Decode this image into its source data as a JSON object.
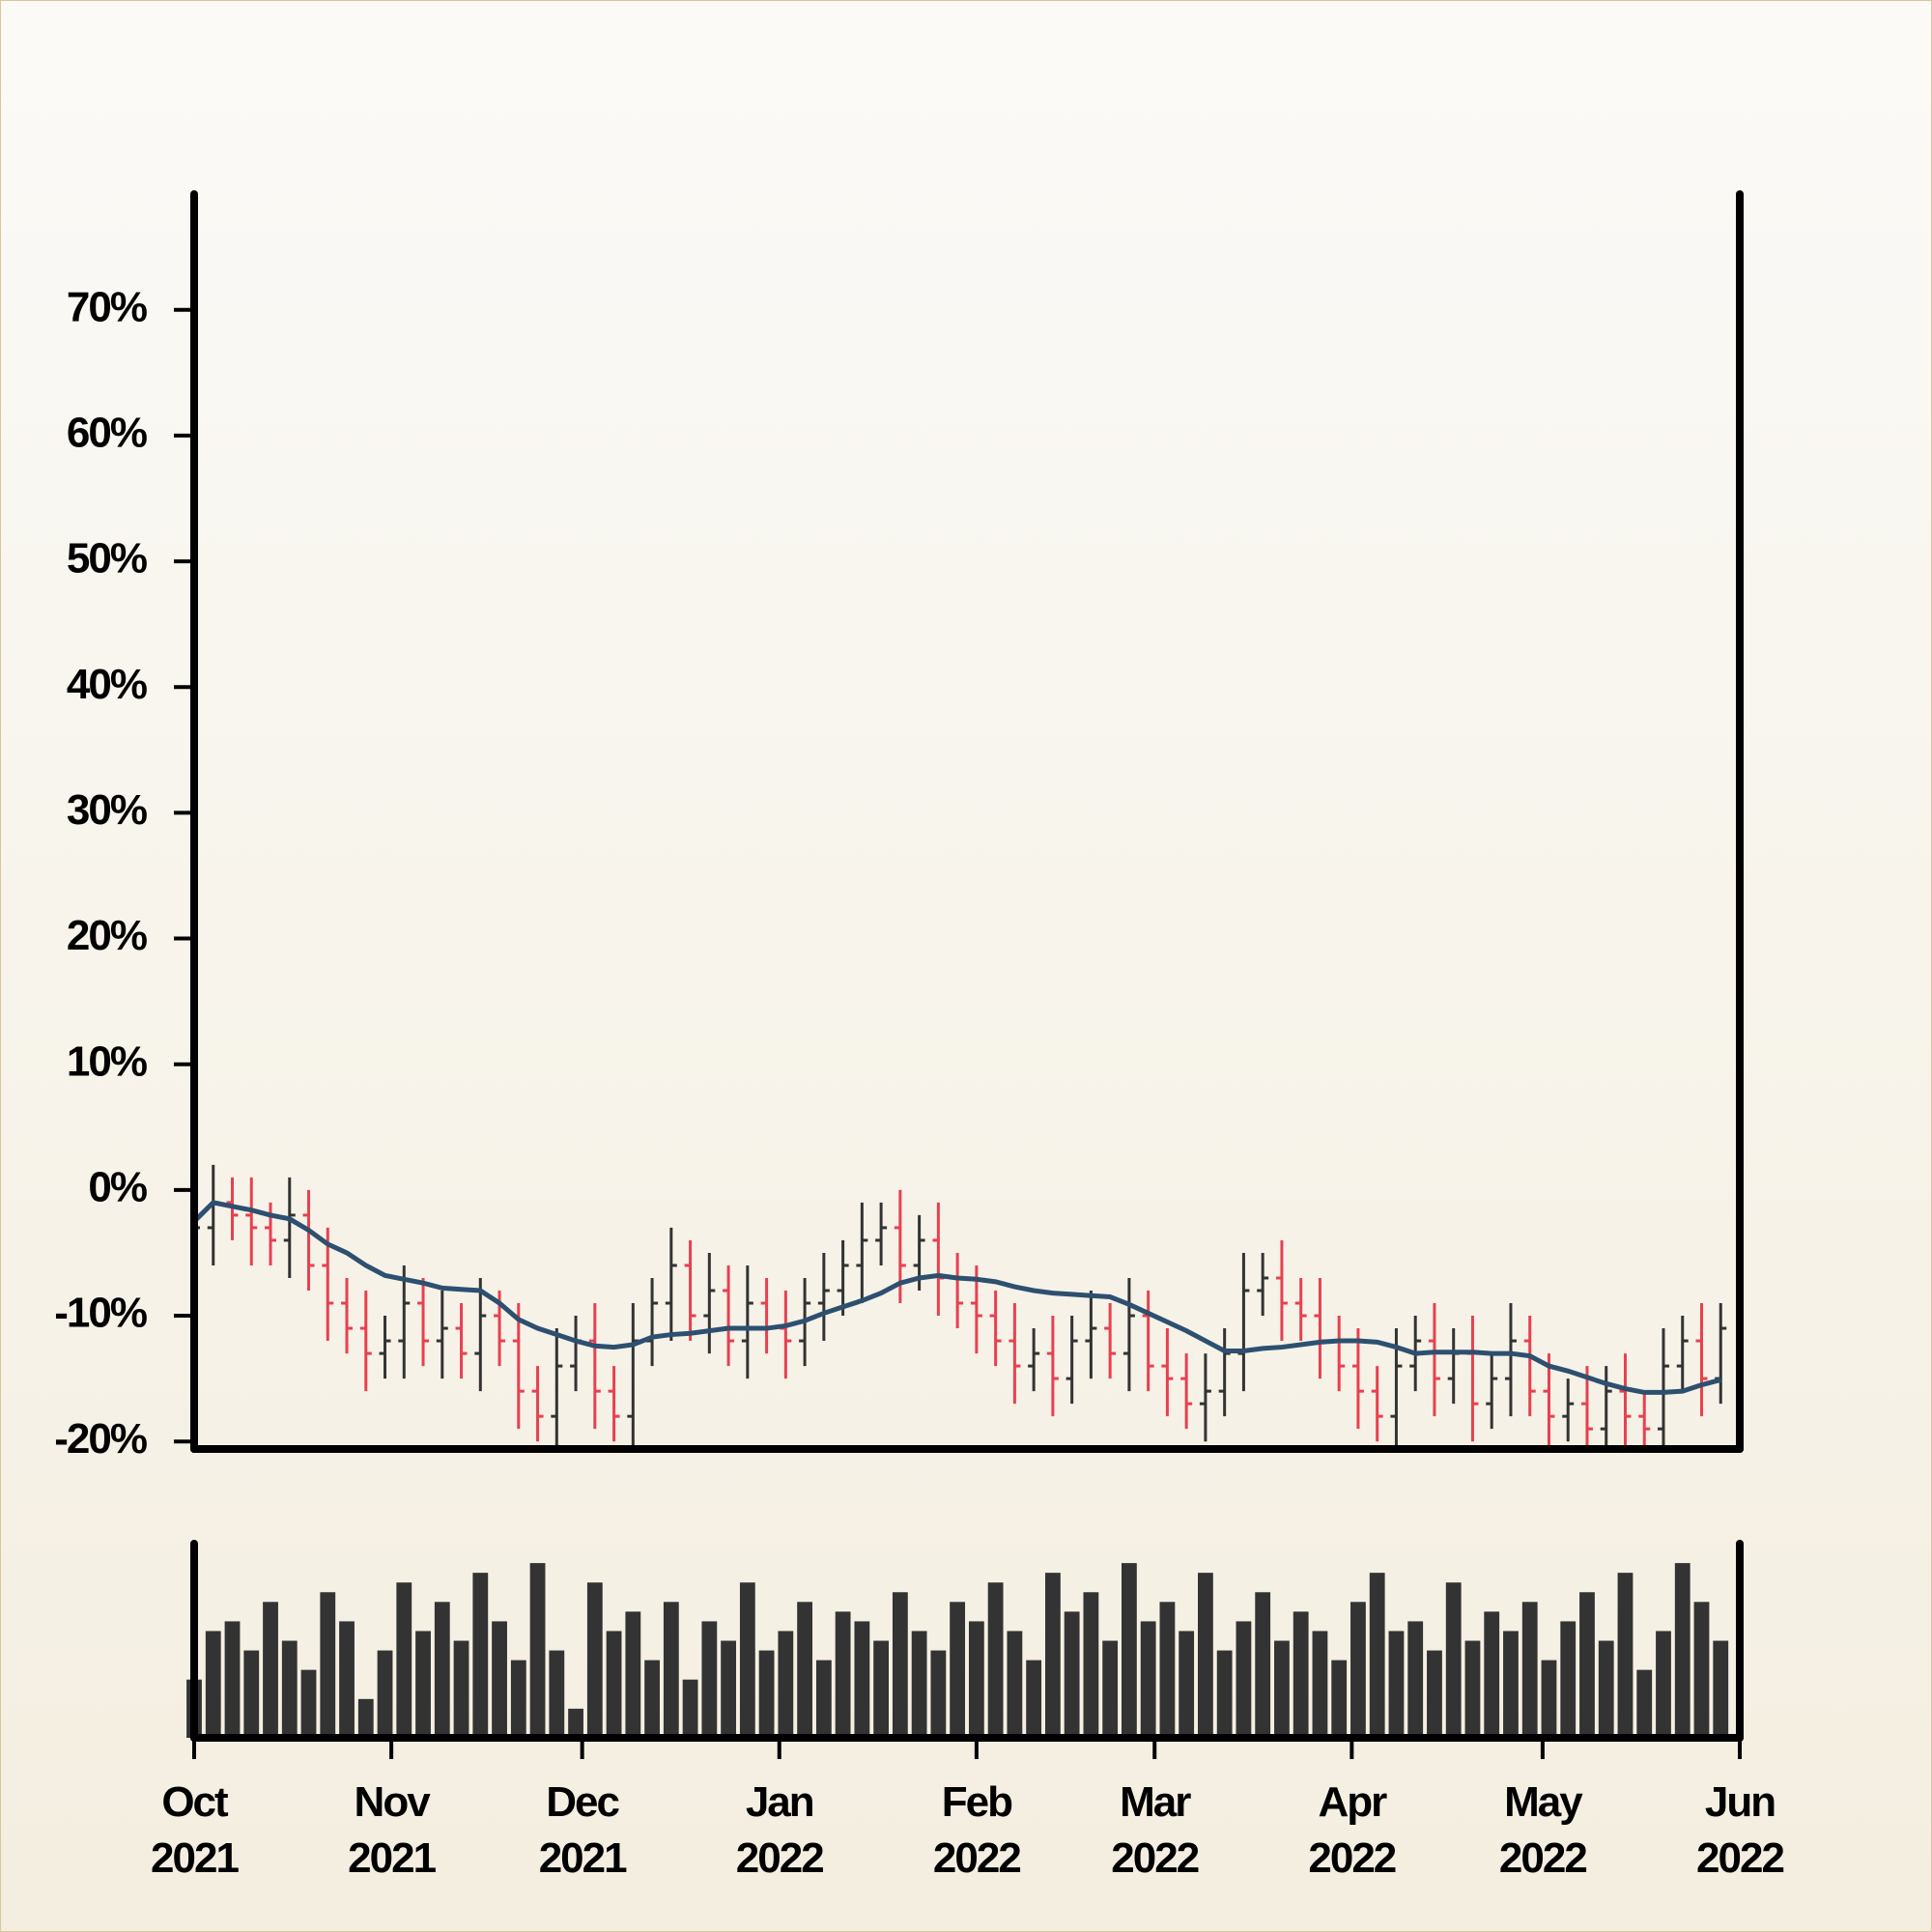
{
  "chart_data": {
    "type": "ohlc",
    "x": [
      0,
      3,
      6,
      9,
      12,
      15,
      18,
      21,
      24,
      27,
      30,
      33,
      36,
      39,
      42,
      45,
      48,
      51,
      54,
      57,
      60,
      63,
      66,
      69,
      72,
      75,
      78,
      81,
      84,
      87,
      90,
      93,
      96,
      99,
      102,
      105,
      108,
      111,
      114,
      117,
      120,
      123,
      126,
      129,
      132,
      135,
      138,
      141,
      144,
      147,
      150,
      153,
      156,
      159,
      162,
      165,
      168,
      171,
      174,
      177,
      180,
      183,
      186,
      189,
      192,
      195,
      198,
      201,
      204,
      207,
      210,
      213,
      216,
      219,
      222,
      225,
      228,
      231,
      234,
      237,
      240
    ],
    "open": [
      -5,
      -3,
      -1,
      -2,
      -3,
      -4,
      -2,
      -6,
      -9,
      -11,
      -13,
      -12,
      -9,
      -12,
      -11,
      -13,
      -10,
      -12,
      -16,
      -18,
      -14,
      -12,
      -16,
      -18,
      -12,
      -9,
      -6,
      -10,
      -8,
      -12,
      -9,
      -11,
      -12,
      -9,
      -8,
      -6,
      -4,
      -3,
      -6,
      -4,
      -7,
      -9,
      -10,
      -12,
      -14,
      -13,
      -15,
      -12,
      -11,
      -13,
      -10,
      -14,
      -15,
      -17,
      -16,
      -13,
      -8,
      -7,
      -9,
      -10,
      -12,
      -14,
      -16,
      -18,
      -14,
      -12,
      -15,
      -13,
      -17,
      -15,
      -12,
      -16,
      -18,
      -17,
      -19,
      -16,
      -18,
      -19,
      -14,
      -12,
      -15
    ],
    "high": [
      -1,
      2,
      1,
      1,
      -1,
      1,
      0,
      -3,
      -7,
      -8,
      -10,
      -6,
      -7,
      -8,
      -9,
      -7,
      -8,
      -9,
      -14,
      -11,
      -10,
      -9,
      -14,
      -9,
      -7,
      -3,
      -4,
      -5,
      -6,
      -6,
      -7,
      -8,
      -7,
      -5,
      -4,
      -1,
      -1,
      0,
      -2,
      -1,
      -5,
      -6,
      -8,
      -9,
      -11,
      -10,
      -10,
      -8,
      -9,
      -7,
      -8,
      -11,
      -13,
      -13,
      -11,
      -5,
      -5,
      -4,
      -7,
      -7,
      -10,
      -11,
      -14,
      -11,
      -10,
      -9,
      -11,
      -10,
      -13,
      -9,
      -10,
      -13,
      -15,
      -14,
      -14,
      -13,
      -16,
      -11,
      -10,
      -9,
      -9
    ],
    "low": [
      -7,
      -6,
      -4,
      -6,
      -6,
      -7,
      -8,
      -12,
      -13,
      -16,
      -15,
      -15,
      -14,
      -15,
      -15,
      -16,
      -14,
      -19,
      -20,
      -21,
      -16,
      -19,
      -20,
      -21,
      -14,
      -12,
      -12,
      -13,
      -14,
      -15,
      -13,
      -15,
      -14,
      -12,
      -10,
      -9,
      -6,
      -9,
      -8,
      -10,
      -11,
      -13,
      -14,
      -17,
      -16,
      -18,
      -17,
      -15,
      -15,
      -16,
      -16,
      -18,
      -19,
      -20,
      -18,
      -16,
      -10,
      -12,
      -12,
      -15,
      -16,
      -19,
      -20,
      -21,
      -16,
      -18,
      -17,
      -20,
      -19,
      -18,
      -18,
      -21,
      -20,
      -22,
      -21,
      -21,
      -21,
      -22,
      -16,
      -18,
      -17
    ],
    "close": [
      -3,
      -1,
      -2,
      -3,
      -4,
      -2,
      -6,
      -9,
      -11,
      -13,
      -12,
      -9,
      -12,
      -11,
      -13,
      -10,
      -12,
      -16,
      -18,
      -14,
      -12,
      -16,
      -18,
      -12,
      -9,
      -6,
      -10,
      -8,
      -12,
      -9,
      -11,
      -12,
      -9,
      -8,
      -6,
      -4,
      -3,
      -6,
      -4,
      -7,
      -9,
      -10,
      -12,
      -14,
      -13,
      -15,
      -12,
      -11,
      -13,
      -10,
      -14,
      -15,
      -17,
      -16,
      -13,
      -8,
      -7,
      -9,
      -10,
      -12,
      -14,
      -16,
      -18,
      -14,
      -12,
      -15,
      -13,
      -17,
      -15,
      -12,
      -16,
      -18,
      -17,
      -19,
      -16,
      -18,
      -19,
      -14,
      -12,
      -15,
      -11
    ],
    "ma": [
      -2.5,
      -1,
      -1.3,
      -1.6,
      -2,
      -2.3,
      -3.2,
      -4.3,
      -5,
      -6,
      -6.8,
      -7.1,
      -7.4,
      -7.8,
      -7.9,
      -8,
      -9,
      -10.3,
      -11,
      -11.5,
      -12,
      -12.4,
      -12.5,
      -12.3,
      -11.7,
      -11.5,
      -11.4,
      -11.2,
      -11,
      -11,
      -11,
      -10.8,
      -10.4,
      -9.8,
      -9.3,
      -8.8,
      -8.2,
      -7.4,
      -7,
      -6.8,
      -7,
      -7.1,
      -7.3,
      -7.7,
      -8,
      -8.2,
      -8.3,
      -8.4,
      -8.5,
      -9.1,
      -9.8,
      -10.5,
      -11.2,
      -12,
      -12.8,
      -12.8,
      -12.6,
      -12.5,
      -12.3,
      -12.1,
      -12,
      -12,
      -12.1,
      -12.5,
      -13,
      -12.9,
      -12.9,
      -12.9,
      -13,
      -13,
      -13.2,
      -14,
      -14.4,
      -14.9,
      -15.4,
      -15.8,
      -16.1,
      -16.1,
      -16,
      -15.5,
      -15.1
    ],
    "volume": [
      30,
      55,
      60,
      45,
      70,
      50,
      35,
      75,
      60,
      20,
      45,
      80,
      55,
      70,
      50,
      85,
      60,
      40,
      90,
      45,
      15,
      80,
      55,
      65,
      40,
      70,
      30,
      60,
      50,
      80,
      45,
      55,
      70,
      40,
      65,
      60,
      50,
      75,
      55,
      45,
      70,
      60,
      80,
      55,
      40,
      85,
      65,
      75,
      50,
      90,
      60,
      70,
      55,
      85,
      45,
      60,
      75,
      50,
      65,
      55,
      40,
      70,
      85,
      55,
      60,
      45,
      80,
      50,
      65,
      55,
      70,
      40,
      60,
      75,
      50,
      85,
      35,
      55,
      90,
      70,
      50
    ],
    "volume_ylim": [
      0,
      100
    ],
    "up_color": "#333333",
    "down_color": "#e8404f",
    "ma_color": "#2d5070",
    "volume_color": "#333333",
    "xlim": [
      0,
      243
    ],
    "xticks": [
      {
        "value": 0,
        "label": "Oct 2021"
      },
      {
        "value": 31,
        "label": "Nov 2021"
      },
      {
        "value": 61,
        "label": "Dec 2021"
      },
      {
        "value": 92,
        "label": "Jan 2022"
      },
      {
        "value": 123,
        "label": "Feb 2022"
      },
      {
        "value": 151,
        "label": "Mar 2022"
      },
      {
        "value": 182,
        "label": "Apr 2022"
      },
      {
        "value": 212,
        "label": "May 2022"
      },
      {
        "value": 243,
        "label": "Jun 2022"
      }
    ],
    "ylim": [
      -20.6,
      79.2
    ],
    "yticks": [
      {
        "value": -20,
        "label": "-20%"
      },
      {
        "value": -10,
        "label": "-10%"
      },
      {
        "value": 0,
        "label": "0%"
      },
      {
        "value": 10,
        "label": "10%"
      },
      {
        "value": 20,
        "label": "20%"
      },
      {
        "value": 30,
        "label": "30%"
      },
      {
        "value": 40,
        "label": "40%"
      },
      {
        "value": 50,
        "label": "50%"
      },
      {
        "value": 60,
        "label": "60%"
      },
      {
        "value": 70,
        "label": "70%"
      }
    ]
  }
}
